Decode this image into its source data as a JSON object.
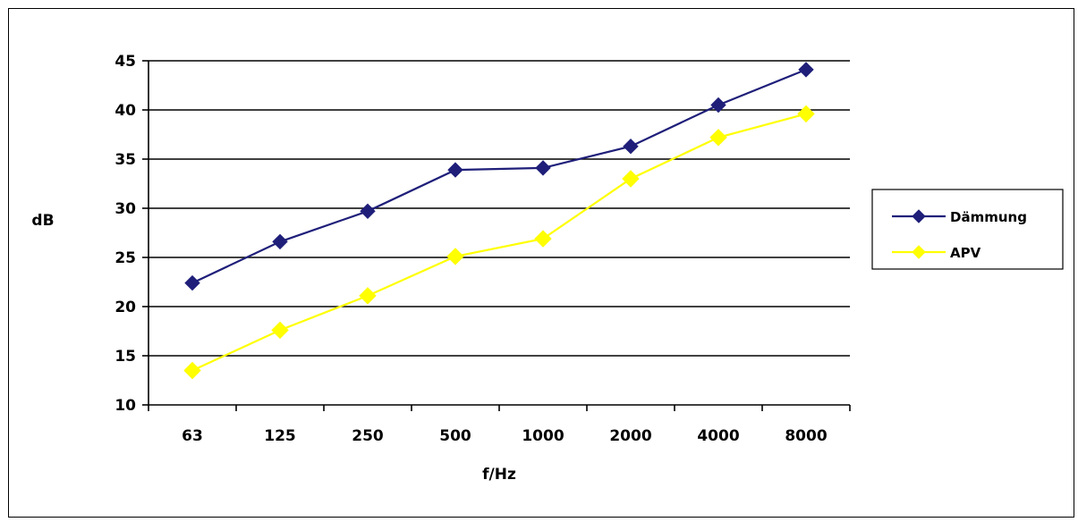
{
  "chart_data": {
    "type": "line",
    "title": "",
    "xlabel": "f/Hz",
    "ylabel": "dB",
    "categories": [
      "63",
      "125",
      "250",
      "500",
      "1000",
      "2000",
      "4000",
      "8000"
    ],
    "ylim": [
      10,
      45
    ],
    "yticks": [
      10,
      15,
      20,
      25,
      30,
      35,
      40,
      45
    ],
    "grid": true,
    "legend_position": "right",
    "series": [
      {
        "name": "Dämmung",
        "color": "#1f1f7a",
        "marker": "diamond",
        "values": [
          22.4,
          26.6,
          29.7,
          33.9,
          34.1,
          36.3,
          40.5,
          44.1
        ]
      },
      {
        "name": "APV",
        "color": "#ffff00",
        "marker": "diamond",
        "values": [
          13.5,
          17.6,
          21.1,
          25.1,
          26.9,
          33.0,
          37.2,
          39.6
        ]
      }
    ]
  }
}
